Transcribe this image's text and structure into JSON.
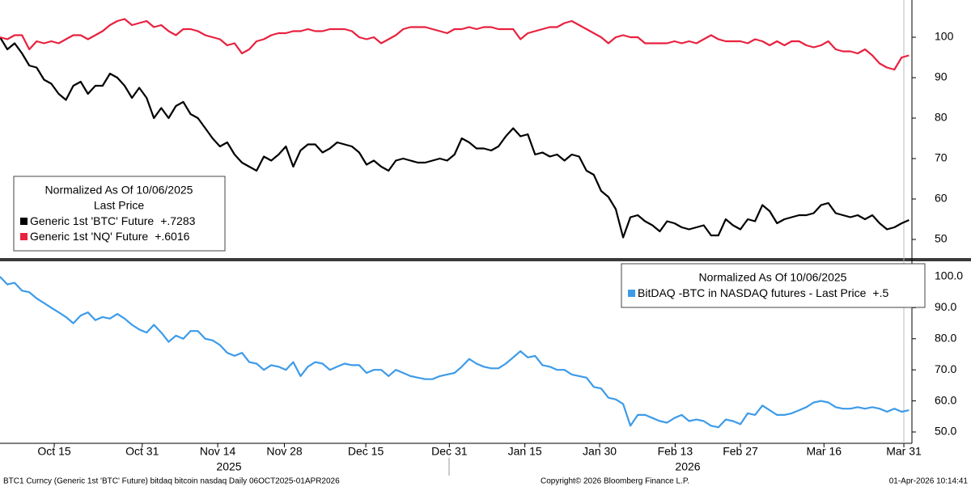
{
  "chart_data": [
    {
      "type": "line",
      "legend_title": [
        "Normalized As Of 10/06/2025",
        "Last Price"
      ],
      "legend_values": [
        "+.7283",
        "+.6016"
      ],
      "ylim": [
        45.4,
        109.2
      ],
      "yticks": [
        50,
        60,
        70,
        80,
        90,
        100
      ],
      "xlim": [
        0,
        124.4
      ],
      "series": [
        {
          "name": "Generic 1st 'BTC' Future",
          "color": "#000000",
          "values": [
            100,
            97,
            98.5,
            96,
            93,
            92.5,
            89.5,
            88.5,
            86,
            84.5,
            88,
            89,
            86,
            88,
            88,
            91,
            90,
            88,
            85,
            87.5,
            85,
            80,
            82.5,
            80,
            83,
            84,
            81,
            80,
            77.5,
            75,
            73,
            74,
            71,
            69,
            68,
            67,
            70.5,
            69.5,
            71,
            73,
            68,
            72,
            73.5,
            73.5,
            71.5,
            72.5,
            74,
            73.5,
            73,
            71.5,
            68.5,
            69.5,
            68,
            67,
            69.5,
            70,
            69.5,
            69,
            69,
            69.5,
            70,
            69.5,
            71,
            75,
            74,
            72.5,
            72.5,
            72,
            73,
            75.5,
            77.5,
            75.5,
            76,
            71,
            71.5,
            70.5,
            71,
            69.5,
            71,
            70.5,
            67,
            66,
            62,
            60.5,
            57.5,
            50.5,
            55.5,
            56,
            54.5,
            53.5,
            52,
            54.5,
            54,
            53,
            52.5,
            53,
            53.5,
            51,
            51,
            55,
            53.5,
            52.5,
            55,
            54.5,
            58.5,
            57,
            54,
            55,
            55.5,
            56,
            56,
            56.5,
            58.5,
            59,
            56.5,
            56,
            55.5,
            56,
            55,
            56,
            54,
            52.5,
            53,
            54,
            54.8
          ]
        },
        {
          "name": "Generic 1st 'NQ' Future",
          "color": "#e8213f",
          "values": [
            100,
            99.5,
            100.5,
            100.5,
            97,
            99,
            98.5,
            99,
            98.5,
            99.5,
            100.5,
            100.5,
            99.5,
            100.5,
            101.5,
            103,
            104,
            104.5,
            103,
            103.5,
            104,
            102.5,
            103,
            101.5,
            100.5,
            102,
            102,
            101.5,
            100.5,
            100,
            99.5,
            98,
            98.5,
            96,
            97,
            99,
            99.5,
            100.5,
            101,
            101,
            101.5,
            101.5,
            102,
            101.5,
            101.5,
            102,
            102,
            102,
            101.5,
            100,
            99.5,
            100,
            98.5,
            99.5,
            100.5,
            102,
            102.5,
            102.5,
            102.5,
            102,
            101.5,
            101,
            102,
            102,
            102.5,
            102,
            102.5,
            102.5,
            102,
            102,
            102,
            99.5,
            101,
            101.5,
            102,
            102.5,
            102.5,
            103.5,
            104,
            103,
            102,
            101,
            100,
            98.5,
            100,
            100.5,
            100,
            100,
            98.5,
            98.5,
            98.5,
            98.5,
            99,
            98.5,
            99,
            98.5,
            99.5,
            100.5,
            99.5,
            99,
            99,
            99,
            98.5,
            99.5,
            99,
            98,
            99,
            98,
            99,
            99,
            98,
            97.5,
            98,
            99,
            97,
            96.5,
            96.5,
            96,
            97,
            95.5,
            93.5,
            92.5,
            92,
            95,
            95.5
          ]
        }
      ]
    },
    {
      "type": "line",
      "legend_title": [
        "Normalized As Of 10/06/2025"
      ],
      "legend_values": [
        "+.5"
      ],
      "ylim": [
        46.35,
        105.2
      ],
      "yticks": [
        {
          "value": 50,
          "label": "50.0"
        },
        {
          "value": 60,
          "label": "60.0"
        },
        {
          "value": 70,
          "label": "70.0"
        },
        {
          "value": 80,
          "label": "80.0"
        },
        {
          "value": 90,
          "label": "90.0"
        },
        {
          "value": 100,
          "label": "100.0"
        }
      ],
      "xlim": [
        0,
        124.4
      ],
      "xticks": [
        {
          "value": 7.4,
          "label": "Oct 15"
        },
        {
          "value": 19.4,
          "label": "Oct 31"
        },
        {
          "value": 29.7,
          "label": "Nov 14"
        },
        {
          "value": 38.8,
          "label": "Nov 28"
        },
        {
          "value": 49.9,
          "label": "Dec 15"
        },
        {
          "value": 61.3,
          "label": "Dec 31"
        },
        {
          "value": 71.6,
          "label": "Jan 15"
        },
        {
          "value": 81.8,
          "label": "Jan 30"
        },
        {
          "value": 92.1,
          "label": "Feb 13"
        },
        {
          "value": 101,
          "label": "Feb 27"
        },
        {
          "value": 112.4,
          "label": "Mar 16"
        },
        {
          "value": 123.3,
          "label": "Mar 31"
        }
      ],
      "years": [
        "2025",
        "2026"
      ],
      "series": [
        {
          "name": "BitDAQ -BTC in NASDAQ futures - Last Price",
          "color": "#3d9be9",
          "values": [
            100,
            97.5,
            98,
            95.5,
            95,
            93,
            91.5,
            90,
            88.5,
            87,
            85,
            87.5,
            88.5,
            86,
            87,
            86.5,
            88,
            86.5,
            84.5,
            83,
            82,
            84.5,
            82,
            79,
            81,
            80,
            82.5,
            82.5,
            80,
            79.5,
            78,
            75.5,
            74.5,
            75.5,
            72.5,
            72,
            70,
            71.5,
            71,
            70,
            72.5,
            68,
            71,
            72.5,
            72,
            70,
            71,
            72,
            71.5,
            71.5,
            69,
            70,
            70,
            68,
            70,
            69,
            68,
            67.5,
            67,
            67,
            68,
            68.5,
            69,
            71,
            73.5,
            72,
            71,
            70.5,
            70.5,
            72,
            74,
            76,
            74,
            74.5,
            71.5,
            71,
            70,
            70,
            68.5,
            68,
            67.5,
            64.5,
            64,
            61,
            60.5,
            59,
            52,
            55.5,
            55.5,
            54.5,
            53.5,
            53,
            54.5,
            55.5,
            53.5,
            54,
            53.5,
            52,
            51.5,
            54,
            53.5,
            52.5,
            56,
            55.5,
            58.5,
            57,
            55.5,
            55.5,
            56,
            57,
            58,
            59.5,
            60,
            59.5,
            58,
            57.5,
            57.5,
            58,
            57.5,
            58,
            57.5,
            56.5,
            57.5,
            56.5,
            57
          ]
        }
      ]
    }
  ],
  "footer": {
    "left": "BTC1 Curncy (Generic 1st 'BTC' Future) bitdaq bitcoin nasdaq Daily 06OCT2025-01APR2026",
    "center": "Copyright© 2026 Bloomberg Finance L.P.",
    "right": "01-Apr-2026 10:14:41"
  }
}
